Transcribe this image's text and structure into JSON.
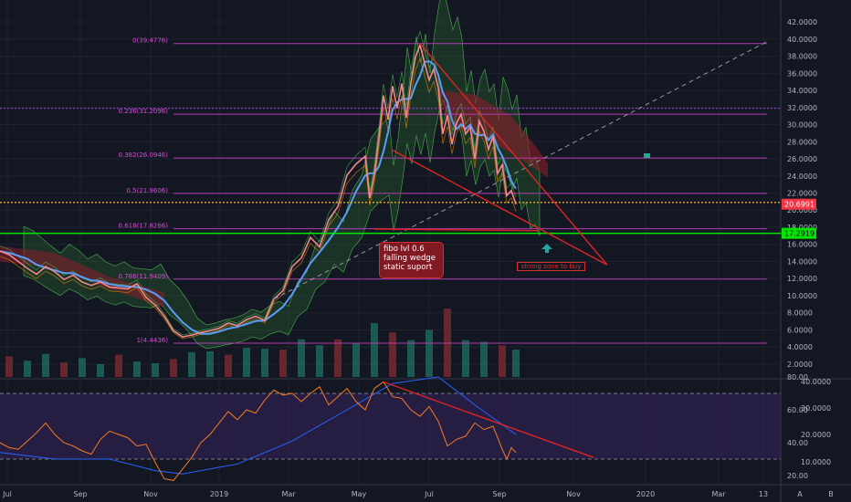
{
  "chart_data": [
    {
      "type": "candlestick",
      "title": "",
      "price_scale": {
        "ylim": [
          0.5,
          43.5
        ],
        "ticks": [
          "42.0000",
          "40.0000",
          "38.0000",
          "36.0000",
          "34.0000",
          "32.0000",
          "30.0000",
          "28.0000",
          "26.0000",
          "24.0000",
          "22.0000",
          "20.0000",
          "18.0000",
          "16.0000",
          "14.0000",
          "12.0000",
          "10.0000",
          "8.0000",
          "6.0000",
          "4.0000",
          "2.0000"
        ]
      },
      "fibonacci": [
        {
          "level": "0",
          "price": 39.4776,
          "label": "0(39.4776)"
        },
        {
          "level": "0.236",
          "price": 31.2096,
          "label": "0.236(31.2096)"
        },
        {
          "level": "0.382",
          "price": 26.0946,
          "label": "0.382(26.0946)"
        },
        {
          "level": "0.5",
          "price": 21.9606,
          "label": "0.5(21.9606)"
        },
        {
          "level": "0.618",
          "price": 17.8266,
          "label": "0.618(17.8266)"
        },
        {
          "level": "0.786",
          "price": 11.9409,
          "label": "0.786(11.9409)"
        },
        {
          "level": "1",
          "price": 4.4436,
          "label": "1(4.4436)"
        }
      ],
      "current_price": "20.6991",
      "support_price": "17.2919",
      "price_series": [
        [
          0,
          15.2
        ],
        [
          10,
          14.8
        ],
        [
          20,
          14.0
        ],
        [
          30,
          13.2
        ],
        [
          40,
          12.5
        ],
        [
          50,
          13.4
        ],
        [
          60,
          12.8
        ],
        [
          70,
          11.9
        ],
        [
          80,
          12.4
        ],
        [
          90,
          11.6
        ],
        [
          100,
          11.2
        ],
        [
          110,
          11.6
        ],
        [
          120,
          11.0
        ],
        [
          130,
          10.9
        ],
        [
          140,
          10.8
        ],
        [
          150,
          11.4
        ],
        [
          160,
          9.8
        ],
        [
          170,
          8.9
        ],
        [
          180,
          7.6
        ],
        [
          190,
          5.9
        ],
        [
          200,
          5.2
        ],
        [
          210,
          5.4
        ],
        [
          220,
          5.7
        ],
        [
          230,
          5.9
        ],
        [
          240,
          6.2
        ],
        [
          250,
          6.8
        ],
        [
          260,
          6.5
        ],
        [
          270,
          7.2
        ],
        [
          280,
          7.6
        ],
        [
          290,
          7.1
        ],
        [
          300,
          9.6
        ],
        [
          310,
          10.6
        ],
        [
          320,
          13.4
        ],
        [
          330,
          14.4
        ],
        [
          340,
          16.8
        ],
        [
          350,
          15.7
        ],
        [
          360,
          18.9
        ],
        [
          370,
          20.4
        ],
        [
          380,
          24.1
        ],
        [
          390,
          25.4
        ],
        [
          400,
          26.3
        ],
        [
          405,
          21.4
        ],
        [
          410,
          24.2
        ],
        [
          415,
          28.5
        ],
        [
          420,
          33.4
        ],
        [
          425,
          30.6
        ],
        [
          430,
          34.5
        ],
        [
          435,
          31.9
        ],
        [
          440,
          34.8
        ],
        [
          445,
          30.8
        ],
        [
          450,
          34.9
        ],
        [
          455,
          37.9
        ],
        [
          460,
          39.3
        ],
        [
          465,
          37.2
        ],
        [
          470,
          35.2
        ],
        [
          475,
          36.5
        ],
        [
          480,
          34.3
        ],
        [
          485,
          28.9
        ],
        [
          490,
          31.1
        ],
        [
          495,
          27.7
        ],
        [
          500,
          30.2
        ],
        [
          505,
          31.2
        ],
        [
          510,
          28.9
        ],
        [
          515,
          29.7
        ],
        [
          520,
          26.0
        ],
        [
          525,
          30.4
        ],
        [
          530,
          29.2
        ],
        [
          535,
          27.1
        ],
        [
          540,
          28.6
        ],
        [
          545,
          24.3
        ],
        [
          550,
          25.3
        ],
        [
          555,
          21.7
        ],
        [
          560,
          22.3
        ],
        [
          565,
          20.7
        ]
      ],
      "volume_series": [
        [
          10,
          2.4
        ],
        [
          30,
          1.9
        ],
        [
          50,
          2.7
        ],
        [
          70,
          1.7
        ],
        [
          90,
          2.2
        ],
        [
          110,
          1.5
        ],
        [
          130,
          2.6
        ],
        [
          150,
          1.8
        ],
        [
          170,
          1.6
        ],
        [
          190,
          2.1
        ],
        [
          210,
          2.9
        ],
        [
          230,
          3.0
        ],
        [
          250,
          2.6
        ],
        [
          270,
          3.4
        ],
        [
          290,
          3.3
        ],
        [
          310,
          3.2
        ],
        [
          330,
          4.4
        ],
        [
          350,
          3.7
        ],
        [
          370,
          4.4
        ],
        [
          390,
          4.0
        ],
        [
          410,
          6.3
        ],
        [
          430,
          5.2
        ],
        [
          450,
          4.3
        ],
        [
          470,
          5.5
        ],
        [
          490,
          8.0
        ],
        [
          510,
          4.3
        ],
        [
          530,
          4.1
        ],
        [
          550,
          3.7
        ],
        [
          565,
          3.2
        ]
      ],
      "trendlines": [
        {
          "from": [
            460,
            39.4776
          ],
          "to": [
            665,
            13.6
          ]
        },
        {
          "from": [
            430,
            27.0
          ],
          "to": [
            665,
            13.6
          ]
        },
        {
          "from": [
            410,
            17.8
          ],
          "to": [
            590,
            17.6
          ]
        }
      ],
      "dashed_line": {
        "from": [
          300,
          9.6
        ],
        "to": [
          840,
          39.7
        ]
      },
      "horizontal_lines": [
        {
          "price": 31.9
        },
        {
          "price": 20.9
        }
      ],
      "annotations": [
        {
          "lines": [
            "fibo lvl 0.6",
            "falling wedge",
            "static suport"
          ]
        },
        {
          "text": "strong zone to buy"
        }
      ]
    },
    {
      "type": "line",
      "title": "",
      "oscillator_scale": {
        "left_ticks": [
          "80.00",
          "60.00",
          "40.00",
          "20.00"
        ],
        "right_ticks": [
          "40.0000",
          "30.0000",
          "20.0000",
          "10.0000"
        ]
      },
      "band": {
        "upper": 70,
        "lower": 30
      },
      "series": [
        {
          "values": [
            [
              0,
              40
            ],
            [
              10,
              37
            ],
            [
              20,
              36
            ],
            [
              30,
              41
            ],
            [
              40,
              46
            ],
            [
              50,
              52
            ],
            [
              60,
              45
            ],
            [
              70,
              40
            ],
            [
              80,
              38
            ],
            [
              90,
              35
            ],
            [
              100,
              33
            ],
            [
              110,
              42
            ],
            [
              120,
              47
            ],
            [
              130,
              45
            ],
            [
              140,
              43
            ],
            [
              150,
              38
            ],
            [
              160,
              39
            ],
            [
              170,
              28
            ],
            [
              180,
              18
            ],
            [
              190,
              17
            ],
            [
              200,
              24
            ],
            [
              210,
              31
            ],
            [
              220,
              40
            ],
            [
              230,
              45
            ],
            [
              240,
              52
            ],
            [
              250,
              59
            ],
            [
              260,
              54
            ],
            [
              270,
              60
            ],
            [
              280,
              58
            ],
            [
              290,
              66
            ],
            [
              300,
              72
            ],
            [
              310,
              69
            ],
            [
              320,
              70
            ],
            [
              330,
              65
            ],
            [
              340,
              70
            ],
            [
              350,
              74
            ],
            [
              360,
              63
            ],
            [
              370,
              68
            ],
            [
              380,
              73
            ],
            [
              390,
              65
            ],
            [
              400,
              60
            ],
            [
              410,
              73
            ],
            [
              420,
              77
            ],
            [
              430,
              68
            ],
            [
              440,
              67
            ],
            [
              450,
              60
            ],
            [
              460,
              56
            ],
            [
              470,
              62
            ],
            [
              480,
              53
            ],
            [
              490,
              38
            ],
            [
              500,
              42
            ],
            [
              510,
              44
            ],
            [
              520,
              52
            ],
            [
              530,
              48
            ],
            [
              540,
              50
            ],
            [
              550,
              36
            ],
            [
              555,
              30
            ],
            [
              560,
              37
            ],
            [
              565,
              34
            ]
          ]
        },
        {
          "values": [
            [
              0,
              34
            ],
            [
              60,
              30
            ],
            [
              120,
              30
            ],
            [
              170,
              23
            ],
            [
              200,
              21
            ],
            [
              260,
              27
            ],
            [
              320,
              41
            ],
            [
              380,
              60
            ],
            [
              430,
              76
            ],
            [
              480,
              80
            ],
            [
              520,
              63
            ],
            [
              560,
              47
            ],
            [
              565,
              45
            ]
          ]
        }
      ],
      "trendline": {
        "from": [
          420,
          77
        ],
        "to": [
          650,
          31
        ]
      }
    }
  ],
  "x_axis": {
    "ticks": [
      "Jul",
      "Sep",
      "Nov",
      "2019",
      "Mar",
      "May",
      "Jul",
      "Sep",
      "Nov",
      "2020",
      "Mar",
      "13"
    ]
  },
  "axis_buttons": [
    "A",
    "B"
  ]
}
